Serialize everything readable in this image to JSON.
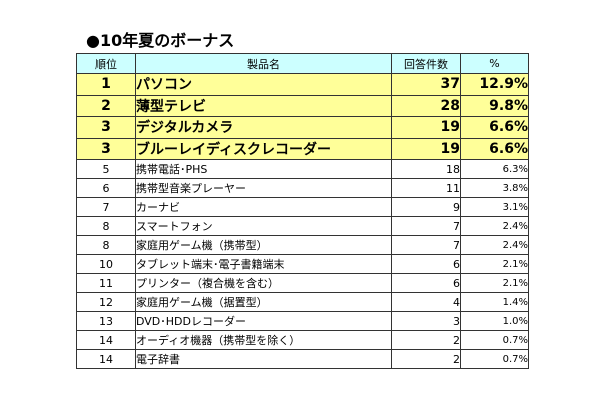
{
  "title": "●10年夏のボーナス",
  "colors": {
    "header_bg": "#ccffff",
    "highlight_bg": "#ffff99",
    "border": "#333333"
  },
  "table": {
    "headers": {
      "rank": "順位",
      "product": "製品名",
      "count": "回答件数",
      "percent": "%"
    },
    "rows": [
      {
        "rank": "1",
        "product": "パソコン",
        "count": "37",
        "percent": "12.9%",
        "highlight": true
      },
      {
        "rank": "2",
        "product": "薄型テレビ",
        "count": "28",
        "percent": "9.8%",
        "highlight": true
      },
      {
        "rank": "3",
        "product": "デジタルカメラ",
        "count": "19",
        "percent": "6.6%",
        "highlight": true
      },
      {
        "rank": "3",
        "product": "ブルーレイディスクレコーダー",
        "count": "19",
        "percent": "6.6%",
        "highlight": true
      },
      {
        "rank": "5",
        "product": "携帯電話･PHS",
        "count": "18",
        "percent": "6.3%",
        "highlight": false
      },
      {
        "rank": "6",
        "product": "携帯型音楽プレーヤー",
        "count": "11",
        "percent": "3.8%",
        "highlight": false
      },
      {
        "rank": "7",
        "product": "カーナビ",
        "count": "9",
        "percent": "3.1%",
        "highlight": false
      },
      {
        "rank": "8",
        "product": "スマートフォン",
        "count": "7",
        "percent": "2.4%",
        "highlight": false
      },
      {
        "rank": "8",
        "product": "家庭用ゲーム機（携帯型）",
        "count": "7",
        "percent": "2.4%",
        "highlight": false
      },
      {
        "rank": "10",
        "product": "タブレット端末･電子書籍端末",
        "count": "6",
        "percent": "2.1%",
        "highlight": false
      },
      {
        "rank": "11",
        "product": "プリンター（複合機を含む）",
        "count": "6",
        "percent": "2.1%",
        "highlight": false
      },
      {
        "rank": "12",
        "product": "家庭用ゲーム機（据置型）",
        "count": "4",
        "percent": "1.4%",
        "highlight": false
      },
      {
        "rank": "13",
        "product": "DVD･HDDレコーダー",
        "count": "3",
        "percent": "1.0%",
        "highlight": false
      },
      {
        "rank": "14",
        "product": "オーディオ機器（携帯型を除く）",
        "count": "2",
        "percent": "0.7%",
        "highlight": false
      },
      {
        "rank": "14",
        "product": "電子辞書",
        "count": "2",
        "percent": "0.7%",
        "highlight": false
      }
    ]
  }
}
